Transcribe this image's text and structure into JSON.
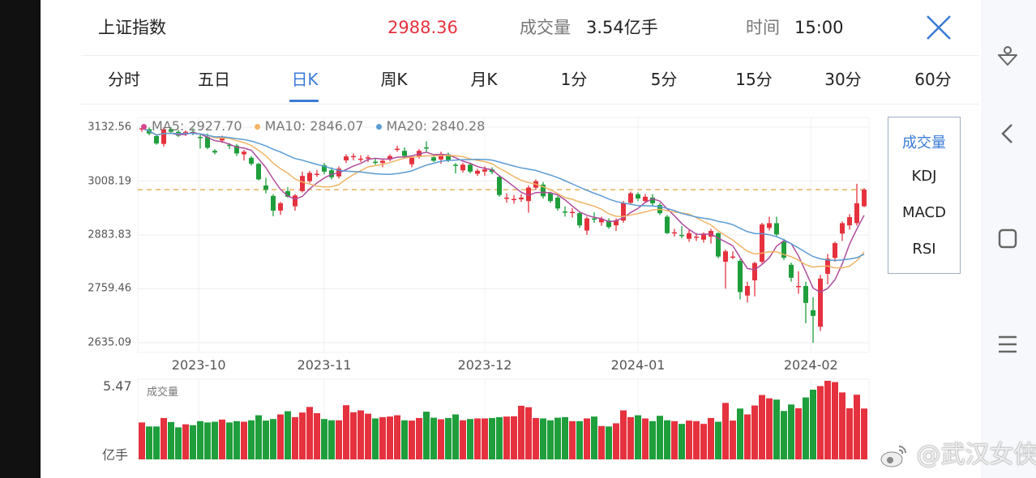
{
  "header": {
    "title": "上证指数",
    "price": "2988.36",
    "volume_label": "成交量",
    "volume_value": "3.54亿手",
    "time_label": "时间",
    "time_value": "15:00"
  },
  "tabs": [
    {
      "label": "分时"
    },
    {
      "label": "五日"
    },
    {
      "label": "日K",
      "active": true
    },
    {
      "label": "周K"
    },
    {
      "label": "月K"
    },
    {
      "label": "1分"
    },
    {
      "label": "5分"
    },
    {
      "label": "15分"
    },
    {
      "label": "30分"
    },
    {
      "label": "60分"
    }
  ],
  "indicators": [
    {
      "label": "成交量",
      "active": true
    },
    {
      "label": "KDJ"
    },
    {
      "label": "MACD"
    },
    {
      "label": "RSI"
    }
  ],
  "legend": {
    "ma5": "MA5: 2927.70",
    "ma10": "MA10: 2846.07",
    "ma20": "MA20: 2840.28"
  },
  "volume_panel": {
    "label": "成交量",
    "max": "5.47",
    "unit": "亿手"
  },
  "watermark": "@武汉女侠",
  "colors": {
    "up": "#e5323e",
    "down": "#1f9e3c",
    "ma5": "#b04a9c",
    "ma10": "#f0b465",
    "ma20": "#5a9bd4",
    "accent": "#3a7bd5",
    "last_price_line": "#e0a040"
  },
  "icons": {
    "close": "close-x-icon",
    "assistant": "assistant-icon",
    "back": "back-icon",
    "home": "home-square-icon",
    "menu": "menu-icon"
  },
  "chart_data": {
    "type": "candlestick",
    "ylim": [
      2635.09,
      3132.56
    ],
    "y_ticks": [
      "3132.56",
      "3008.19",
      "2883.83",
      "2759.46",
      "2635.09"
    ],
    "x_ticks": [
      "2023-10",
      "2023-11",
      "2023-12",
      "2024-01",
      "2024-02"
    ],
    "last_close": 2988.36,
    "grid": true,
    "legend_placement": "top-left",
    "candles_ohlc": [
      [
        3128,
        3130,
        3122,
        3130
      ],
      [
        3128,
        3132,
        3114,
        3118
      ],
      [
        3112,
        3116,
        3092,
        3095
      ],
      [
        3094,
        3132,
        3088,
        3128
      ],
      [
        3128,
        3132.56,
        3118,
        3122
      ],
      [
        3122,
        3126,
        3110,
        3113
      ],
      [
        3116,
        3125,
        3112,
        3122
      ],
      [
        3122,
        3130,
        3114,
        3118
      ],
      [
        3110,
        3116,
        3083,
        3108
      ],
      [
        3110,
        3118,
        3082,
        3085
      ],
      [
        3078,
        3082,
        3070,
        3074
      ],
      [
        3102,
        3113,
        3096,
        3110
      ],
      [
        3092,
        3096,
        3082,
        3090
      ],
      [
        3090,
        3094,
        3066,
        3072
      ],
      [
        3070,
        3080,
        3056,
        3076
      ],
      [
        3062,
        3066,
        3044,
        3048
      ],
      [
        3048,
        3050,
        3010,
        3012
      ],
      [
        2998,
        3016,
        2980,
        2988
      ],
      [
        2974,
        2978,
        2927,
        2940
      ],
      [
        2940,
        2960,
        2930,
        2957
      ],
      [
        2985,
        2994,
        2970,
        2972
      ],
      [
        2950,
        2978,
        2940,
        2975
      ],
      [
        2985,
        3030,
        2982,
        3020
      ],
      [
        3008,
        3032,
        3004,
        3027
      ],
      [
        3024,
        3034,
        3018,
        3025
      ],
      [
        3045,
        3050,
        3024,
        3030
      ],
      [
        3033,
        3040,
        3012,
        3017
      ],
      [
        3019,
        3042,
        3014,
        3037
      ],
      [
        3056,
        3070,
        3050,
        3065
      ],
      [
        3064,
        3072,
        3056,
        3066
      ],
      [
        3058,
        3068,
        3052,
        3060
      ],
      [
        3060,
        3068,
        3052,
        3063
      ],
      [
        3053,
        3060,
        3046,
        3050
      ],
      [
        3050,
        3058,
        3040,
        3055
      ],
      [
        3058,
        3070,
        3054,
        3066
      ],
      [
        3082,
        3090,
        3076,
        3083
      ],
      [
        3078,
        3086,
        3062,
        3066
      ],
      [
        3047,
        3066,
        3040,
        3062
      ],
      [
        3066,
        3082,
        3060,
        3078
      ],
      [
        3086,
        3100,
        3076,
        3085
      ],
      [
        3063,
        3070,
        3052,
        3055
      ],
      [
        3058,
        3076,
        3048,
        3070
      ],
      [
        3070,
        3074,
        3052,
        3056
      ],
      [
        3046,
        3050,
        3026,
        3044
      ],
      [
        3033,
        3050,
        3028,
        3046
      ],
      [
        3046,
        3050,
        3026,
        3030
      ],
      [
        3025,
        3036,
        3020,
        3032
      ],
      [
        3030,
        3042,
        3020,
        3035
      ],
      [
        3035,
        3040,
        3024,
        3029
      ],
      [
        3018,
        3022,
        2972,
        2976
      ],
      [
        2968,
        2980,
        2958,
        2970
      ],
      [
        2966,
        2976,
        2956,
        2967
      ],
      [
        2966,
        2978,
        2960,
        2970
      ],
      [
        2962,
        2998,
        2935,
        2993
      ],
      [
        2993,
        3012,
        2988,
        3008
      ],
      [
        3000,
        3006,
        2968,
        2973
      ],
      [
        2980,
        2984,
        2958,
        2962
      ],
      [
        2970,
        2974,
        2940,
        2945
      ],
      [
        2938,
        2950,
        2926,
        2936
      ],
      [
        2935,
        2946,
        2924,
        2937
      ],
      [
        2934,
        2938,
        2900,
        2906
      ],
      [
        2894,
        2926,
        2884,
        2922
      ],
      [
        2922,
        2936,
        2912,
        2921
      ],
      [
        2913,
        2926,
        2905,
        2921
      ],
      [
        2917,
        2922,
        2898,
        2902
      ],
      [
        2906,
        2922,
        2893,
        2917
      ],
      [
        2917,
        2962,
        2912,
        2958
      ],
      [
        2958,
        2984,
        2955,
        2980
      ],
      [
        2978,
        2982,
        2962,
        2968
      ],
      [
        2962,
        2978,
        2958,
        2972
      ],
      [
        2970,
        2978,
        2950,
        2957
      ],
      [
        2953,
        2958,
        2930,
        2934
      ],
      [
        2926,
        2930,
        2886,
        2888
      ],
      [
        2888,
        2898,
        2880,
        2890
      ],
      [
        2884,
        2904,
        2876,
        2882
      ],
      [
        2875,
        2895,
        2868,
        2888
      ],
      [
        2879,
        2888,
        2870,
        2880
      ],
      [
        2873,
        2890,
        2866,
        2887
      ],
      [
        2880,
        2898,
        2864,
        2893
      ],
      [
        2888,
        2890,
        2830,
        2834
      ],
      [
        2822,
        2850,
        2760,
        2846
      ],
      [
        2834,
        2846,
        2828,
        2834
      ],
      [
        2824,
        2828,
        2735,
        2752
      ],
      [
        2744,
        2776,
        2728,
        2766
      ],
      [
        2779,
        2822,
        2742,
        2819
      ],
      [
        2822,
        2912,
        2818,
        2908
      ],
      [
        2900,
        2926,
        2894,
        2911
      ],
      [
        2911,
        2926,
        2880,
        2885
      ],
      [
        2868,
        2875,
        2826,
        2831
      ],
      [
        2815,
        2820,
        2776,
        2785
      ],
      [
        2766,
        2800,
        2748,
        2766
      ],
      [
        2766,
        2776,
        2680,
        2727
      ],
      [
        2710,
        2740,
        2635.09,
        2697
      ],
      [
        2672,
        2792,
        2662,
        2783
      ],
      [
        2794,
        2840,
        2770,
        2829
      ],
      [
        2831,
        2868,
        2822,
        2865
      ],
      [
        2887,
        2915,
        2870,
        2911
      ],
      [
        2906,
        2932,
        2896,
        2925
      ],
      [
        2911,
        3002,
        2905,
        2957
      ],
      [
        2950,
        2992,
        2948,
        2988.36
      ]
    ],
    "volume_ylim": [
      0,
      5.47
    ],
    "volume_unit": "亿手",
    "volumes": [
      2.57,
      2.29,
      2.29,
      2.88,
      2.6,
      2.23,
      2.44,
      2.38,
      2.66,
      2.57,
      2.62,
      2.77,
      2.57,
      2.66,
      2.62,
      2.72,
      3.07,
      2.7,
      2.81,
      3.13,
      3.35,
      2.94,
      3.26,
      3.65,
      3.22,
      2.81,
      2.72,
      2.72,
      3.77,
      3.28,
      3.41,
      3.18,
      2.85,
      2.94,
      2.98,
      3.07,
      2.72,
      2.7,
      2.88,
      3.32,
      2.9,
      2.79,
      2.88,
      3.13,
      2.72,
      2.81,
      2.85,
      2.85,
      2.88,
      2.94,
      2.98,
      3.0,
      3.73,
      3.63,
      2.88,
      2.85,
      2.72,
      2.9,
      2.94,
      2.66,
      2.66,
      2.85,
      2.98,
      2.32,
      2.29,
      2.51,
      3.41,
      2.94,
      3.07,
      2.85,
      2.66,
      3.03,
      2.72,
      2.66,
      2.47,
      2.7,
      2.66,
      2.47,
      2.88,
      2.62,
      3.93,
      2.7,
      3.54,
      3.13,
      3.75,
      4.48,
      4.25,
      4.16,
      3.37,
      3.82,
      3.56,
      4.31,
      4.85,
      5.1,
      5.47,
      5.38,
      4.66,
      3.56,
      4.5,
      3.54
    ]
  }
}
